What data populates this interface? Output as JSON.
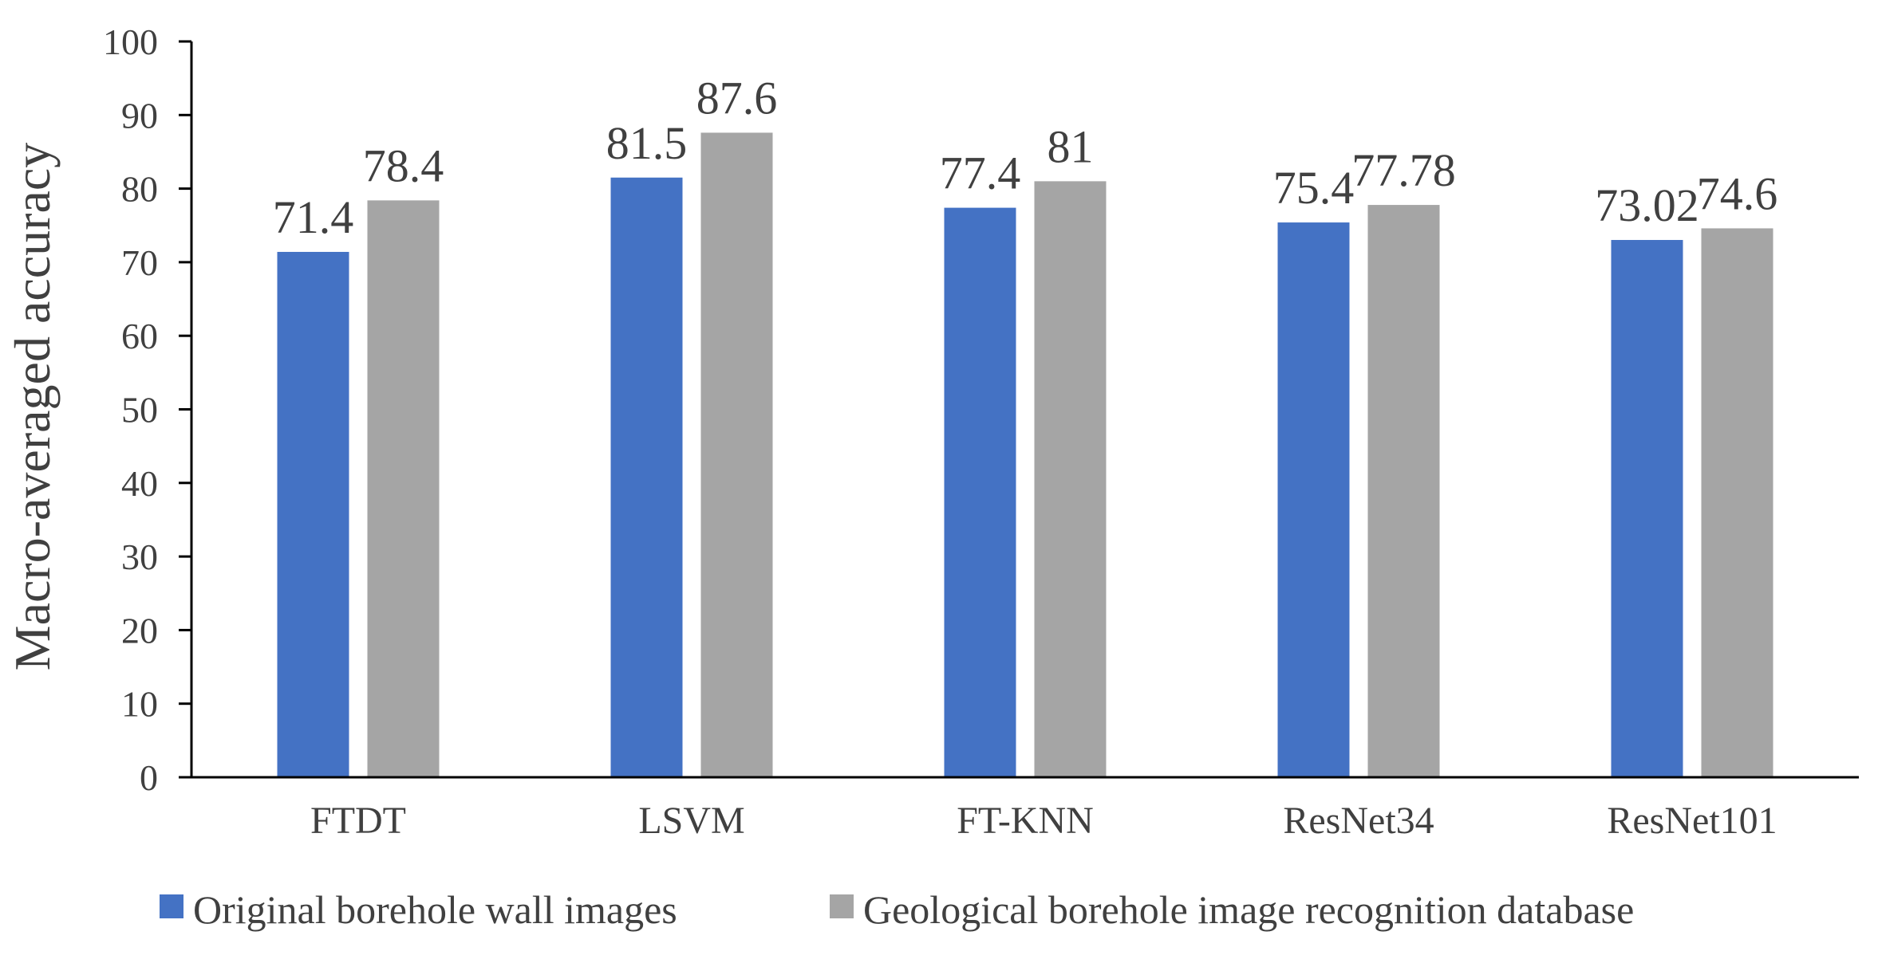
{
  "chart_data": {
    "type": "bar",
    "categories": [
      "FTDT",
      "LSVM",
      "FT-KNN",
      "ResNet34",
      "ResNet101"
    ],
    "series": [
      {
        "name": "Original borehole wall images",
        "values": [
          71.4,
          81.5,
          77.4,
          75.4,
          73.02
        ],
        "labels": [
          "71.4",
          "81.5",
          "77.4",
          "75.4",
          "73.02"
        ],
        "color": "#4472c4"
      },
      {
        "name": "Geological borehole image recognition database",
        "values": [
          78.4,
          87.6,
          81,
          77.78,
          74.6
        ],
        "labels": [
          "78.4",
          "87.6",
          "81",
          "77.78",
          "74.6"
        ],
        "color": "#a5a5a5"
      }
    ],
    "title": "",
    "xlabel": "",
    "ylabel": "Macro-averaged accuracy",
    "ylim": [
      0,
      100
    ],
    "yticks": [
      "0",
      "10",
      "20",
      "30",
      "40",
      "50",
      "60",
      "70",
      "80",
      "90",
      "100"
    ],
    "grid": false,
    "legend_position": "bottom"
  }
}
